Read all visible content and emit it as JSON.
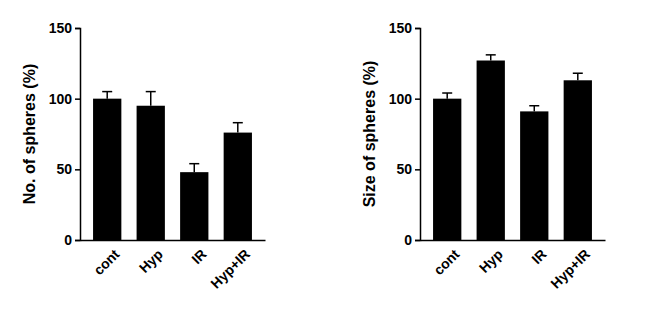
{
  "chart_data": [
    {
      "type": "bar",
      "y_label": "No. of spheres (%)",
      "categories": [
        "cont",
        "Hyp",
        "IR",
        "Hyp+IR"
      ],
      "values": [
        100,
        95,
        48,
        76
      ],
      "errors": [
        5,
        10,
        6,
        7
      ],
      "color": "#000000",
      "ylim": [
        0,
        150
      ],
      "yticks": [
        0,
        50,
        100,
        150
      ]
    },
    {
      "type": "bar",
      "y_label": "Size of spheres (%)",
      "categories": [
        "cont",
        "Hyp",
        "IR",
        "Hyp+IR"
      ],
      "values": [
        100,
        127,
        91,
        113
      ],
      "errors": [
        4,
        4,
        4,
        5
      ],
      "color": "#000000",
      "ylim": [
        0,
        150
      ],
      "yticks": [
        0,
        50,
        100,
        150
      ]
    }
  ]
}
